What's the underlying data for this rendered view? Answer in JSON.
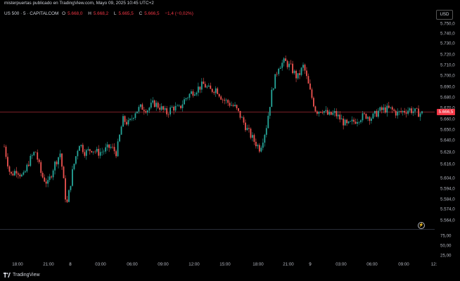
{
  "header": {
    "publisher": "misterpuertas publicado en TradingView.com, Mayo 09, 2025 10:45 UTC+2"
  },
  "legend": {
    "symbol": "US 500 · 5 · CAPITALCOM",
    "o_label": "O",
    "o_value": "5.668,0",
    "h_label": "H",
    "h_value": "5.668,2",
    "l_label": "L",
    "l_value": "5.665,5",
    "c_label": "C",
    "c_value": "5.666,5",
    "change": "−1,4 (−0,02%)"
  },
  "price_axis": {
    "currency": "USD",
    "ticks": [
      "5.750,0",
      "5.740,0",
      "5.730,0",
      "5.720,0",
      "5.710,0",
      "5.700,0",
      "5.690,0",
      "5.680,0",
      "5.670,0",
      "5.660,0",
      "5.650,0",
      "5.640,0",
      "5.628,0",
      "5.616,0",
      "5.604,0",
      "5.594,0",
      "5.584,0",
      "5.574,0",
      "5.564,0"
    ],
    "current_price": "5.666,5"
  },
  "indicator_axis": {
    "ticks": [
      "75,00",
      "50,00",
      "25,00"
    ]
  },
  "time_axis": {
    "ticks": [
      "18:00",
      "21:00",
      "8",
      "03:00",
      "06:00",
      "09:00",
      "12:00",
      "15:00",
      "18:00",
      "21:00",
      "9",
      "03:00",
      "06:00",
      "09:00",
      "12:"
    ]
  },
  "footer": {
    "brand": "TradingView"
  },
  "colors": {
    "up": "#26a69a",
    "down": "#ef5350",
    "background": "#000000",
    "current_price": "#f23645"
  },
  "chart_data": {
    "type": "candlestick",
    "title": "US 500 · 5 · CAPITALCOM",
    "ylabel": "USD",
    "ylim": [
      5560,
      5755
    ],
    "x_labels": [
      "18:00",
      "21:00",
      "8",
      "03:00",
      "06:00",
      "09:00",
      "12:00",
      "15:00",
      "18:00",
      "21:00",
      "9",
      "03:00",
      "06:00",
      "09:00"
    ],
    "path_close": [
      5634,
      5606,
      5612,
      5604,
      5620,
      5630,
      5606,
      5598,
      5616,
      5628,
      5576,
      5612,
      5638,
      5628,
      5632,
      5628,
      5630,
      5634,
      5628,
      5660,
      5656,
      5668,
      5672,
      5670,
      5676,
      5672,
      5666,
      5672,
      5670,
      5680,
      5686,
      5690,
      5694,
      5688,
      5690,
      5680,
      5676,
      5672,
      5662,
      5650,
      5640,
      5632,
      5652,
      5690,
      5712,
      5716,
      5710,
      5700,
      5712,
      5688,
      5668,
      5670,
      5664,
      5666,
      5660,
      5654,
      5658,
      5662,
      5664,
      5662,
      5668,
      5670,
      5670,
      5666,
      5668,
      5670,
      5667,
      5666
    ],
    "current_price": 5666.5,
    "indicator": {
      "ylim": [
        0,
        100
      ],
      "ticks": [
        75,
        50,
        25
      ]
    }
  }
}
